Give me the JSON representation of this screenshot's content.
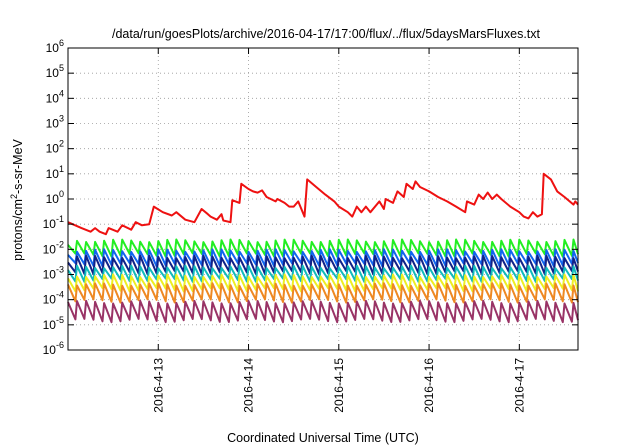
{
  "chart_data": {
    "type": "line",
    "title": "/data/run/goesPlots/archive/2016-04-17/17:00/flux/../flux/5daysMarsFluxes.txt",
    "xlabel": "Coordinated Universal Time (UTC)",
    "ylabel": "protons/cm²-s-sr-MeV",
    "ylabel_parts": {
      "base": "protons/cm",
      "sup": "2",
      "rest": "-s-sr-MeV"
    },
    "yscale": "log",
    "ylim": [
      1e-06,
      1000000
    ],
    "xlim": [
      0,
      5.65
    ],
    "y_ticks": [
      {
        "exp": "-6",
        "value": 1e-06
      },
      {
        "exp": "-5",
        "value": 1e-05
      },
      {
        "exp": "-4",
        "value": 0.0001
      },
      {
        "exp": "-3",
        "value": 0.001
      },
      {
        "exp": "-2",
        "value": 0.01
      },
      {
        "exp": "-1",
        "value": 0.1
      },
      {
        "exp": "0",
        "value": 1
      },
      {
        "exp": "1",
        "value": 10
      },
      {
        "exp": "2",
        "value": 100
      },
      {
        "exp": "3",
        "value": 1000
      },
      {
        "exp": "4",
        "value": 10000
      },
      {
        "exp": "5",
        "value": 100000
      },
      {
        "exp": "6",
        "value": 1000000
      }
    ],
    "y_tick_base": "10",
    "x_ticks": [
      {
        "label": "2016-4-13",
        "value": 1.0
      },
      {
        "label": "2016-4-14",
        "value": 2.0
      },
      {
        "label": "2016-4-15",
        "value": 3.0
      },
      {
        "label": "2016-4-16",
        "value": 4.0
      },
      {
        "label": "2016-4-17",
        "value": 5.0
      }
    ],
    "grid": true,
    "legend": "none",
    "series": [
      {
        "color": "#ee1111",
        "points": [
          [
            0.0,
            0.12
          ],
          [
            0.15,
            0.07
          ],
          [
            0.25,
            0.05
          ],
          [
            0.3,
            0.07
          ],
          [
            0.35,
            0.05
          ],
          [
            0.42,
            0.04
          ],
          [
            0.45,
            0.07
          ],
          [
            0.55,
            0.05
          ],
          [
            0.6,
            0.09
          ],
          [
            0.7,
            0.06
          ],
          [
            0.75,
            0.12
          ],
          [
            0.82,
            0.09
          ],
          [
            0.9,
            0.1
          ],
          [
            0.95,
            0.5
          ],
          [
            1.05,
            0.3
          ],
          [
            1.15,
            0.22
          ],
          [
            1.2,
            0.3
          ],
          [
            1.3,
            0.15
          ],
          [
            1.4,
            0.12
          ],
          [
            1.48,
            0.4
          ],
          [
            1.55,
            0.25
          ],
          [
            1.58,
            0.2
          ],
          [
            1.65,
            0.15
          ],
          [
            1.7,
            0.25
          ],
          [
            1.72,
            0.14
          ],
          [
            1.8,
            0.12
          ],
          [
            1.82,
            0.9
          ],
          [
            1.9,
            0.7
          ],
          [
            1.92,
            4.0
          ],
          [
            2.0,
            2.5
          ],
          [
            2.05,
            2.0
          ],
          [
            2.1,
            1.8
          ],
          [
            2.15,
            2.2
          ],
          [
            2.2,
            1.2
          ],
          [
            2.3,
            0.8
          ],
          [
            2.32,
            1.0
          ],
          [
            2.4,
            0.7
          ],
          [
            2.45,
            0.5
          ],
          [
            2.5,
            0.5
          ],
          [
            2.55,
            0.8
          ],
          [
            2.6,
            0.3
          ],
          [
            2.62,
            0.2
          ],
          [
            2.65,
            6.0
          ],
          [
            2.75,
            3.0
          ],
          [
            2.85,
            1.5
          ],
          [
            2.95,
            0.8
          ],
          [
            3.0,
            0.5
          ],
          [
            3.1,
            0.3
          ],
          [
            3.15,
            0.2
          ],
          [
            3.2,
            0.5
          ],
          [
            3.25,
            0.3
          ],
          [
            3.3,
            0.5
          ],
          [
            3.35,
            0.3
          ],
          [
            3.45,
            0.8
          ],
          [
            3.5,
            0.4
          ],
          [
            3.52,
            1.0
          ],
          [
            3.6,
            0.7
          ],
          [
            3.65,
            2.0
          ],
          [
            3.72,
            1.2
          ],
          [
            3.75,
            4.0
          ],
          [
            3.82,
            2.5
          ],
          [
            3.85,
            5.0
          ],
          [
            3.9,
            3.0
          ],
          [
            4.0,
            2.0
          ],
          [
            4.1,
            1.2
          ],
          [
            4.2,
            0.8
          ],
          [
            4.3,
            0.5
          ],
          [
            4.4,
            0.3
          ],
          [
            4.42,
            0.8
          ],
          [
            4.5,
            0.6
          ],
          [
            4.55,
            1.5
          ],
          [
            4.6,
            1.0
          ],
          [
            4.65,
            1.8
          ],
          [
            4.7,
            1.0
          ],
          [
            4.75,
            1.5
          ],
          [
            4.8,
            1.0
          ],
          [
            4.9,
            0.5
          ],
          [
            5.0,
            0.3
          ],
          [
            5.05,
            0.2
          ],
          [
            5.1,
            0.17
          ],
          [
            5.15,
            0.3
          ],
          [
            5.2,
            0.2
          ],
          [
            5.25,
            0.25
          ],
          [
            5.27,
            10.0
          ],
          [
            5.35,
            6.0
          ],
          [
            5.42,
            2.0
          ],
          [
            5.5,
            1.2
          ],
          [
            5.6,
            0.6
          ],
          [
            5.62,
            0.8
          ],
          [
            5.65,
            0.6
          ]
        ]
      },
      {
        "color": "#22ee22",
        "periodic": {
          "peak": 0.022,
          "trough": 0.006,
          "period": 0.1,
          "start_peak": 0.015
        }
      },
      {
        "color": "#1166ee",
        "periodic": {
          "peak": 0.009,
          "trough": 0.0025,
          "period": 0.1,
          "start_peak": 0.006
        }
      },
      {
        "color": "#112288",
        "periodic": {
          "peak": 0.005,
          "trough": 0.0012,
          "period": 0.1,
          "start_peak": 0.003
        }
      },
      {
        "color": "#11bbbb",
        "periodic": {
          "peak": 0.002,
          "trough": 0.0006,
          "period": 0.1,
          "start_peak": 0.0015
        }
      },
      {
        "color": "#eeee22",
        "periodic": {
          "peak": 0.0009,
          "trough": 0.00025,
          "period": 0.1,
          "start_peak": 0.0007
        }
      },
      {
        "color": "#ee8822",
        "periodic": {
          "peak": 0.0004,
          "trough": 9e-05,
          "period": 0.1,
          "start_peak": 0.0004
        }
      },
      {
        "color": "#993366",
        "periodic": {
          "peak": 8e-05,
          "trough": 1.5e-05,
          "period": 0.1,
          "start_peak": 8e-05
        }
      }
    ]
  }
}
